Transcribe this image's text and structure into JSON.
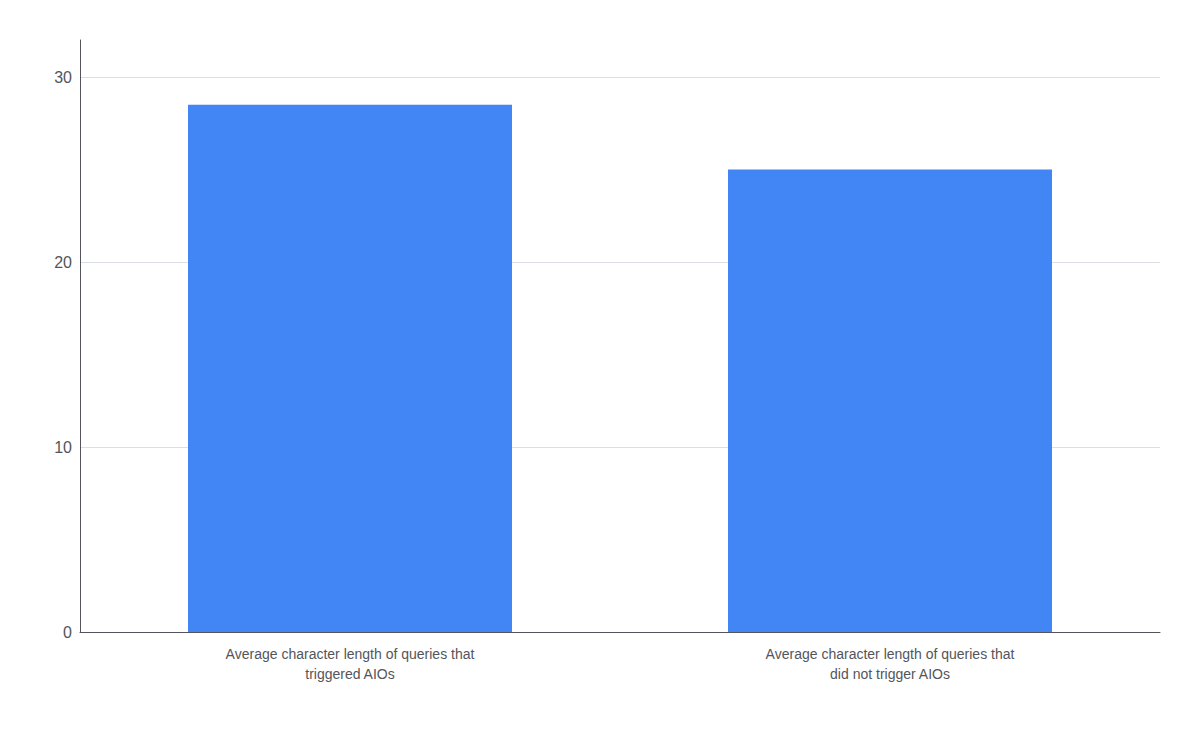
{
  "chart_data": {
    "type": "bar",
    "categories": [
      "Average character length of queries that\ntriggered AIOs",
      "Average character length of queries that\ndid not trigger AIOs"
    ],
    "values": [
      28.5,
      25.0
    ],
    "color": "#4285F4",
    "ylim": [
      0,
      32
    ],
    "yticks": [
      0,
      10,
      20,
      30
    ],
    "grid": true
  }
}
